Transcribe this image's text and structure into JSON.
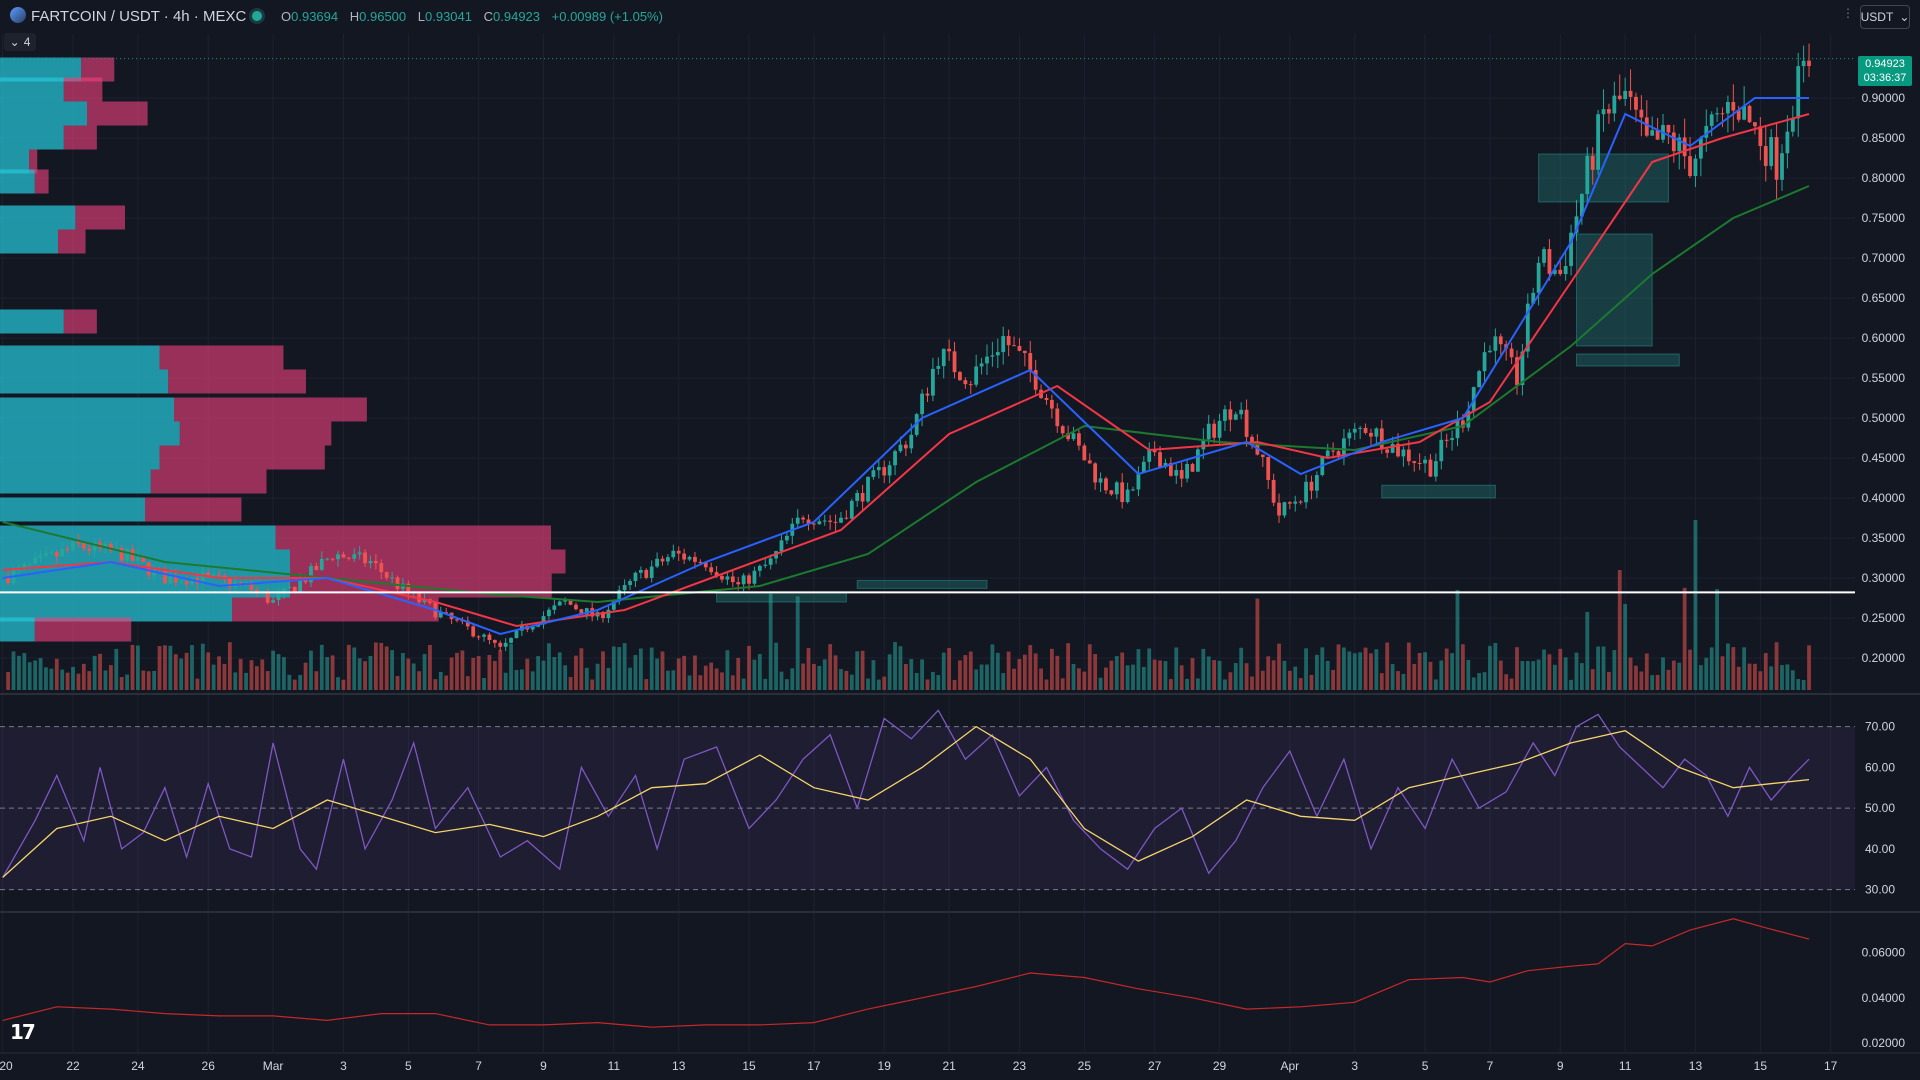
{
  "header": {
    "symbol": "FARTCOIN",
    "quote": "USDT",
    "interval": "4h",
    "exchange": "MEXC",
    "title": "FARTCOIN / USDT · 4h · MEXC",
    "ohlc": {
      "open_label": "O",
      "open": "0.93694",
      "high_label": "H",
      "high": "0.96500",
      "low_label": "L",
      "low": "0.93041",
      "close_label": "C",
      "close": "0.94923",
      "change": "+0.00989 (+1.05%)"
    }
  },
  "toolbar": {
    "currency": "USDT",
    "currency_icon": "chevron-down-icon",
    "collapse_count": "4"
  },
  "last_price": {
    "price": "0.94923",
    "countdown": "03:36:37"
  },
  "colors": {
    "up": "#26a69a",
    "down": "#ef5350",
    "bg": "#131722",
    "ema_fast": "#2962ff",
    "ema_mid": "#f23645",
    "ema_slow": "#1b7a2e",
    "rsi": "#7e57c2",
    "rsi_ma": "#f5d46b",
    "ratio": "#c62828"
  },
  "chart_data": [
    {
      "type": "candlestick",
      "title": "FARTCOIN / USDT · 4h · MEXC",
      "ylim": [
        0.16,
        0.98
      ],
      "y_ticks": [
        "0.90000",
        "0.85000",
        "0.80000",
        "0.75000",
        "0.70000",
        "0.65000",
        "0.60000",
        "0.55000",
        "0.50000",
        "0.45000",
        "0.40000",
        "0.35000",
        "0.30000",
        "0.25000",
        "0.20000"
      ],
      "x_ticks": [
        "20",
        "22",
        "24",
        "26",
        "Mar",
        "3",
        "5",
        "7",
        "9",
        "11",
        "13",
        "15",
        "17",
        "19",
        "21",
        "23",
        "25",
        "27",
        "29",
        "Apr",
        "3",
        "5",
        "7",
        "9",
        "11",
        "13",
        "15",
        "17"
      ],
      "close_path": [
        [
          0,
          0.3
        ],
        [
          14,
          0.34
        ],
        [
          22,
          0.33
        ],
        [
          30,
          0.3
        ],
        [
          37,
          0.3
        ],
        [
          45,
          0.29
        ],
        [
          50,
          0.27
        ],
        [
          56,
          0.3
        ],
        [
          61,
          0.33
        ],
        [
          68,
          0.32
        ],
        [
          75,
          0.28
        ],
        [
          82,
          0.25
        ],
        [
          88,
          0.23
        ],
        [
          92,
          0.21
        ],
        [
          97,
          0.24
        ],
        [
          104,
          0.27
        ],
        [
          110,
          0.25
        ],
        [
          117,
          0.3
        ],
        [
          124,
          0.33
        ],
        [
          130,
          0.32
        ],
        [
          136,
          0.29
        ],
        [
          142,
          0.32
        ],
        [
          148,
          0.38
        ],
        [
          154,
          0.37
        ],
        [
          162,
          0.43
        ],
        [
          168,
          0.48
        ],
        [
          173,
          0.58
        ],
        [
          179,
          0.55
        ],
        [
          185,
          0.6
        ],
        [
          191,
          0.55
        ],
        [
          197,
          0.48
        ],
        [
          203,
          0.42
        ],
        [
          208,
          0.4
        ],
        [
          213,
          0.46
        ],
        [
          218,
          0.42
        ],
        [
          223,
          0.48
        ],
        [
          228,
          0.52
        ],
        [
          232,
          0.46
        ],
        [
          236,
          0.38
        ],
        [
          241,
          0.41
        ],
        [
          246,
          0.46
        ],
        [
          252,
          0.49
        ],
        [
          258,
          0.46
        ],
        [
          264,
          0.44
        ],
        [
          270,
          0.5
        ],
        [
          275,
          0.6
        ],
        [
          280,
          0.55
        ],
        [
          284,
          0.7
        ],
        [
          288,
          0.68
        ],
        [
          292,
          0.78
        ],
        [
          296,
          0.88
        ],
        [
          300,
          0.9
        ],
        [
          304,
          0.84
        ],
        [
          308,
          0.85
        ],
        [
          312,
          0.82
        ],
        [
          316,
          0.86
        ],
        [
          320,
          0.9
        ],
        [
          324,
          0.86
        ],
        [
          328,
          0.82
        ],
        [
          331,
          0.9
        ],
        [
          334,
          0.949
        ]
      ],
      "ema_fast": [
        [
          0,
          0.3
        ],
        [
          20,
          0.32
        ],
        [
          40,
          0.29
        ],
        [
          60,
          0.3
        ],
        [
          80,
          0.26
        ],
        [
          92,
          0.23
        ],
        [
          110,
          0.26
        ],
        [
          130,
          0.32
        ],
        [
          150,
          0.37
        ],
        [
          170,
          0.5
        ],
        [
          190,
          0.56
        ],
        [
          210,
          0.43
        ],
        [
          230,
          0.47
        ],
        [
          240,
          0.43
        ],
        [
          255,
          0.47
        ],
        [
          270,
          0.5
        ],
        [
          290,
          0.72
        ],
        [
          300,
          0.88
        ],
        [
          312,
          0.84
        ],
        [
          324,
          0.9
        ],
        [
          334,
          0.9
        ]
      ],
      "ema_mid": [
        [
          0,
          0.31
        ],
        [
          20,
          0.32
        ],
        [
          40,
          0.3
        ],
        [
          60,
          0.3
        ],
        [
          80,
          0.27
        ],
        [
          95,
          0.24
        ],
        [
          115,
          0.26
        ],
        [
          135,
          0.31
        ],
        [
          155,
          0.36
        ],
        [
          175,
          0.48
        ],
        [
          195,
          0.54
        ],
        [
          212,
          0.46
        ],
        [
          232,
          0.47
        ],
        [
          245,
          0.45
        ],
        [
          262,
          0.47
        ],
        [
          275,
          0.52
        ],
        [
          292,
          0.69
        ],
        [
          305,
          0.82
        ],
        [
          318,
          0.85
        ],
        [
          334,
          0.88
        ]
      ],
      "ema_slow": [
        [
          0,
          0.37
        ],
        [
          30,
          0.32
        ],
        [
          60,
          0.3
        ],
        [
          90,
          0.28
        ],
        [
          110,
          0.27
        ],
        [
          140,
          0.29
        ],
        [
          160,
          0.33
        ],
        [
          180,
          0.42
        ],
        [
          200,
          0.49
        ],
        [
          225,
          0.47
        ],
        [
          250,
          0.46
        ],
        [
          270,
          0.49
        ],
        [
          290,
          0.59
        ],
        [
          305,
          0.68
        ],
        [
          320,
          0.75
        ],
        [
          334,
          0.79
        ]
      ],
      "horizontal_line": 0.282,
      "fvg_zones": [
        {
          "x0": 284,
          "x1": 308,
          "y0": 0.77,
          "y1": 0.83
        },
        {
          "x0": 291,
          "x1": 305,
          "y0": 0.59,
          "y1": 0.73
        },
        {
          "x0": 291,
          "x1": 310,
          "y0": 0.565,
          "y1": 0.58
        },
        {
          "x0": 255,
          "x1": 276,
          "y0": 0.4,
          "y1": 0.416
        },
        {
          "x0": 158,
          "x1": 182,
          "y0": 0.287,
          "y1": 0.297
        },
        {
          "x0": 132,
          "x1": 156,
          "y0": 0.27,
          "y1": 0.282
        }
      ],
      "volume_profile": [
        {
          "y": 0.935,
          "up": 0.28,
          "down": 0.12
        },
        {
          "y": 0.91,
          "up": 0.22,
          "down": 0.14
        },
        {
          "y": 0.88,
          "up": 0.3,
          "down": 0.22
        },
        {
          "y": 0.85,
          "up": 0.22,
          "down": 0.12
        },
        {
          "y": 0.82,
          "up": 0.1,
          "down": 0.03
        },
        {
          "y": 0.795,
          "up": 0.12,
          "down": 0.05
        },
        {
          "y": 0.75,
          "up": 0.26,
          "down": 0.18
        },
        {
          "y": 0.72,
          "up": 0.2,
          "down": 0.1
        },
        {
          "y": 0.62,
          "up": 0.22,
          "down": 0.12
        },
        {
          "y": 0.575,
          "up": 0.55,
          "down": 0.45
        },
        {
          "y": 0.545,
          "up": 0.58,
          "down": 0.5
        },
        {
          "y": 0.51,
          "up": 0.6,
          "down": 0.7
        },
        {
          "y": 0.48,
          "up": 0.62,
          "down": 0.55
        },
        {
          "y": 0.45,
          "up": 0.55,
          "down": 0.6
        },
        {
          "y": 0.42,
          "up": 0.52,
          "down": 0.42
        },
        {
          "y": 0.385,
          "up": 0.5,
          "down": 0.35
        },
        {
          "y": 0.35,
          "up": 0.95,
          "down": 1.0
        },
        {
          "y": 0.32,
          "up": 1.0,
          "down": 1.0
        },
        {
          "y": 0.29,
          "up": 1.0,
          "down": 0.95
        },
        {
          "y": 0.26,
          "up": 0.8,
          "down": 0.75
        },
        {
          "y": 0.235,
          "up": 0.12,
          "down": 0.35
        }
      ]
    },
    {
      "type": "line",
      "name": "RSI",
      "ylim": [
        25,
        78
      ],
      "y_ticks": [
        "70.00",
        "60.00",
        "50.00",
        "40.00",
        "30.00"
      ],
      "rsi_path": [
        [
          0,
          33
        ],
        [
          6,
          47
        ],
        [
          10,
          58
        ],
        [
          15,
          42
        ],
        [
          18,
          60
        ],
        [
          22,
          40
        ],
        [
          26,
          44
        ],
        [
          30,
          55
        ],
        [
          34,
          38
        ],
        [
          38,
          56
        ],
        [
          42,
          40
        ],
        [
          46,
          38
        ],
        [
          50,
          66
        ],
        [
          55,
          40
        ],
        [
          58,
          35
        ],
        [
          63,
          62
        ],
        [
          67,
          40
        ],
        [
          72,
          52
        ],
        [
          76,
          66
        ],
        [
          80,
          45
        ],
        [
          86,
          55
        ],
        [
          92,
          38
        ],
        [
          97,
          42
        ],
        [
          103,
          35
        ],
        [
          107,
          60
        ],
        [
          112,
          48
        ],
        [
          117,
          58
        ],
        [
          121,
          40
        ],
        [
          126,
          62
        ],
        [
          132,
          65
        ],
        [
          138,
          45
        ],
        [
          143,
          52
        ],
        [
          148,
          62
        ],
        [
          153,
          68
        ],
        [
          158,
          50
        ],
        [
          163,
          72
        ],
        [
          168,
          67
        ],
        [
          173,
          74
        ],
        [
          178,
          62
        ],
        [
          183,
          68
        ],
        [
          188,
          53
        ],
        [
          193,
          60
        ],
        [
          198,
          47
        ],
        [
          203,
          40
        ],
        [
          208,
          35
        ],
        [
          213,
          45
        ],
        [
          218,
          50
        ],
        [
          223,
          34
        ],
        [
          228,
          42
        ],
        [
          233,
          55
        ],
        [
          238,
          64
        ],
        [
          243,
          48
        ],
        [
          248,
          62
        ],
        [
          253,
          40
        ],
        [
          258,
          55
        ],
        [
          263,
          45
        ],
        [
          268,
          62
        ],
        [
          273,
          50
        ],
        [
          278,
          54
        ],
        [
          283,
          66
        ],
        [
          287,
          58
        ],
        [
          291,
          70
        ],
        [
          295,
          73
        ],
        [
          299,
          65
        ],
        [
          303,
          60
        ],
        [
          307,
          55
        ],
        [
          311,
          62
        ],
        [
          315,
          58
        ],
        [
          319,
          48
        ],
        [
          323,
          60
        ],
        [
          327,
          52
        ],
        [
          331,
          58
        ],
        [
          334,
          62
        ]
      ],
      "rsi_ma_path": [
        [
          0,
          33
        ],
        [
          10,
          45
        ],
        [
          20,
          48
        ],
        [
          30,
          42
        ],
        [
          40,
          48
        ],
        [
          50,
          45
        ],
        [
          60,
          52
        ],
        [
          70,
          48
        ],
        [
          80,
          44
        ],
        [
          90,
          46
        ],
        [
          100,
          43
        ],
        [
          110,
          48
        ],
        [
          120,
          55
        ],
        [
          130,
          56
        ],
        [
          140,
          63
        ],
        [
          150,
          55
        ],
        [
          160,
          52
        ],
        [
          170,
          60
        ],
        [
          180,
          70
        ],
        [
          190,
          62
        ],
        [
          200,
          45
        ],
        [
          210,
          37
        ],
        [
          220,
          43
        ],
        [
          230,
          52
        ],
        [
          240,
          48
        ],
        [
          250,
          47
        ],
        [
          260,
          55
        ],
        [
          270,
          58
        ],
        [
          280,
          61
        ],
        [
          290,
          66
        ],
        [
          300,
          69
        ],
        [
          310,
          60
        ],
        [
          320,
          55
        ],
        [
          334,
          57
        ]
      ],
      "levels": [
        70,
        50,
        30
      ]
    },
    {
      "type": "line",
      "name": "ratio",
      "ylim": [
        0.016,
        0.078
      ],
      "y_ticks": [
        "0.06000",
        "0.04000",
        "0.02000"
      ],
      "path": [
        [
          0,
          0.03
        ],
        [
          10,
          0.036
        ],
        [
          20,
          0.035
        ],
        [
          30,
          0.033
        ],
        [
          40,
          0.032
        ],
        [
          50,
          0.032
        ],
        [
          60,
          0.03
        ],
        [
          70,
          0.033
        ],
        [
          80,
          0.033
        ],
        [
          90,
          0.028
        ],
        [
          100,
          0.028
        ],
        [
          110,
          0.029
        ],
        [
          120,
          0.027
        ],
        [
          130,
          0.028
        ],
        [
          140,
          0.028
        ],
        [
          150,
          0.029
        ],
        [
          160,
          0.035
        ],
        [
          170,
          0.04
        ],
        [
          180,
          0.045
        ],
        [
          190,
          0.051
        ],
        [
          200,
          0.049
        ],
        [
          210,
          0.044
        ],
        [
          220,
          0.04
        ],
        [
          230,
          0.035
        ],
        [
          240,
          0.036
        ],
        [
          250,
          0.038
        ],
        [
          260,
          0.048
        ],
        [
          270,
          0.049
        ],
        [
          275,
          0.047
        ],
        [
          282,
          0.052
        ],
        [
          290,
          0.054
        ],
        [
          295,
          0.055
        ],
        [
          300,
          0.064
        ],
        [
          305,
          0.063
        ],
        [
          312,
          0.07
        ],
        [
          320,
          0.075
        ],
        [
          326,
          0.071
        ],
        [
          334,
          0.066
        ]
      ]
    }
  ]
}
